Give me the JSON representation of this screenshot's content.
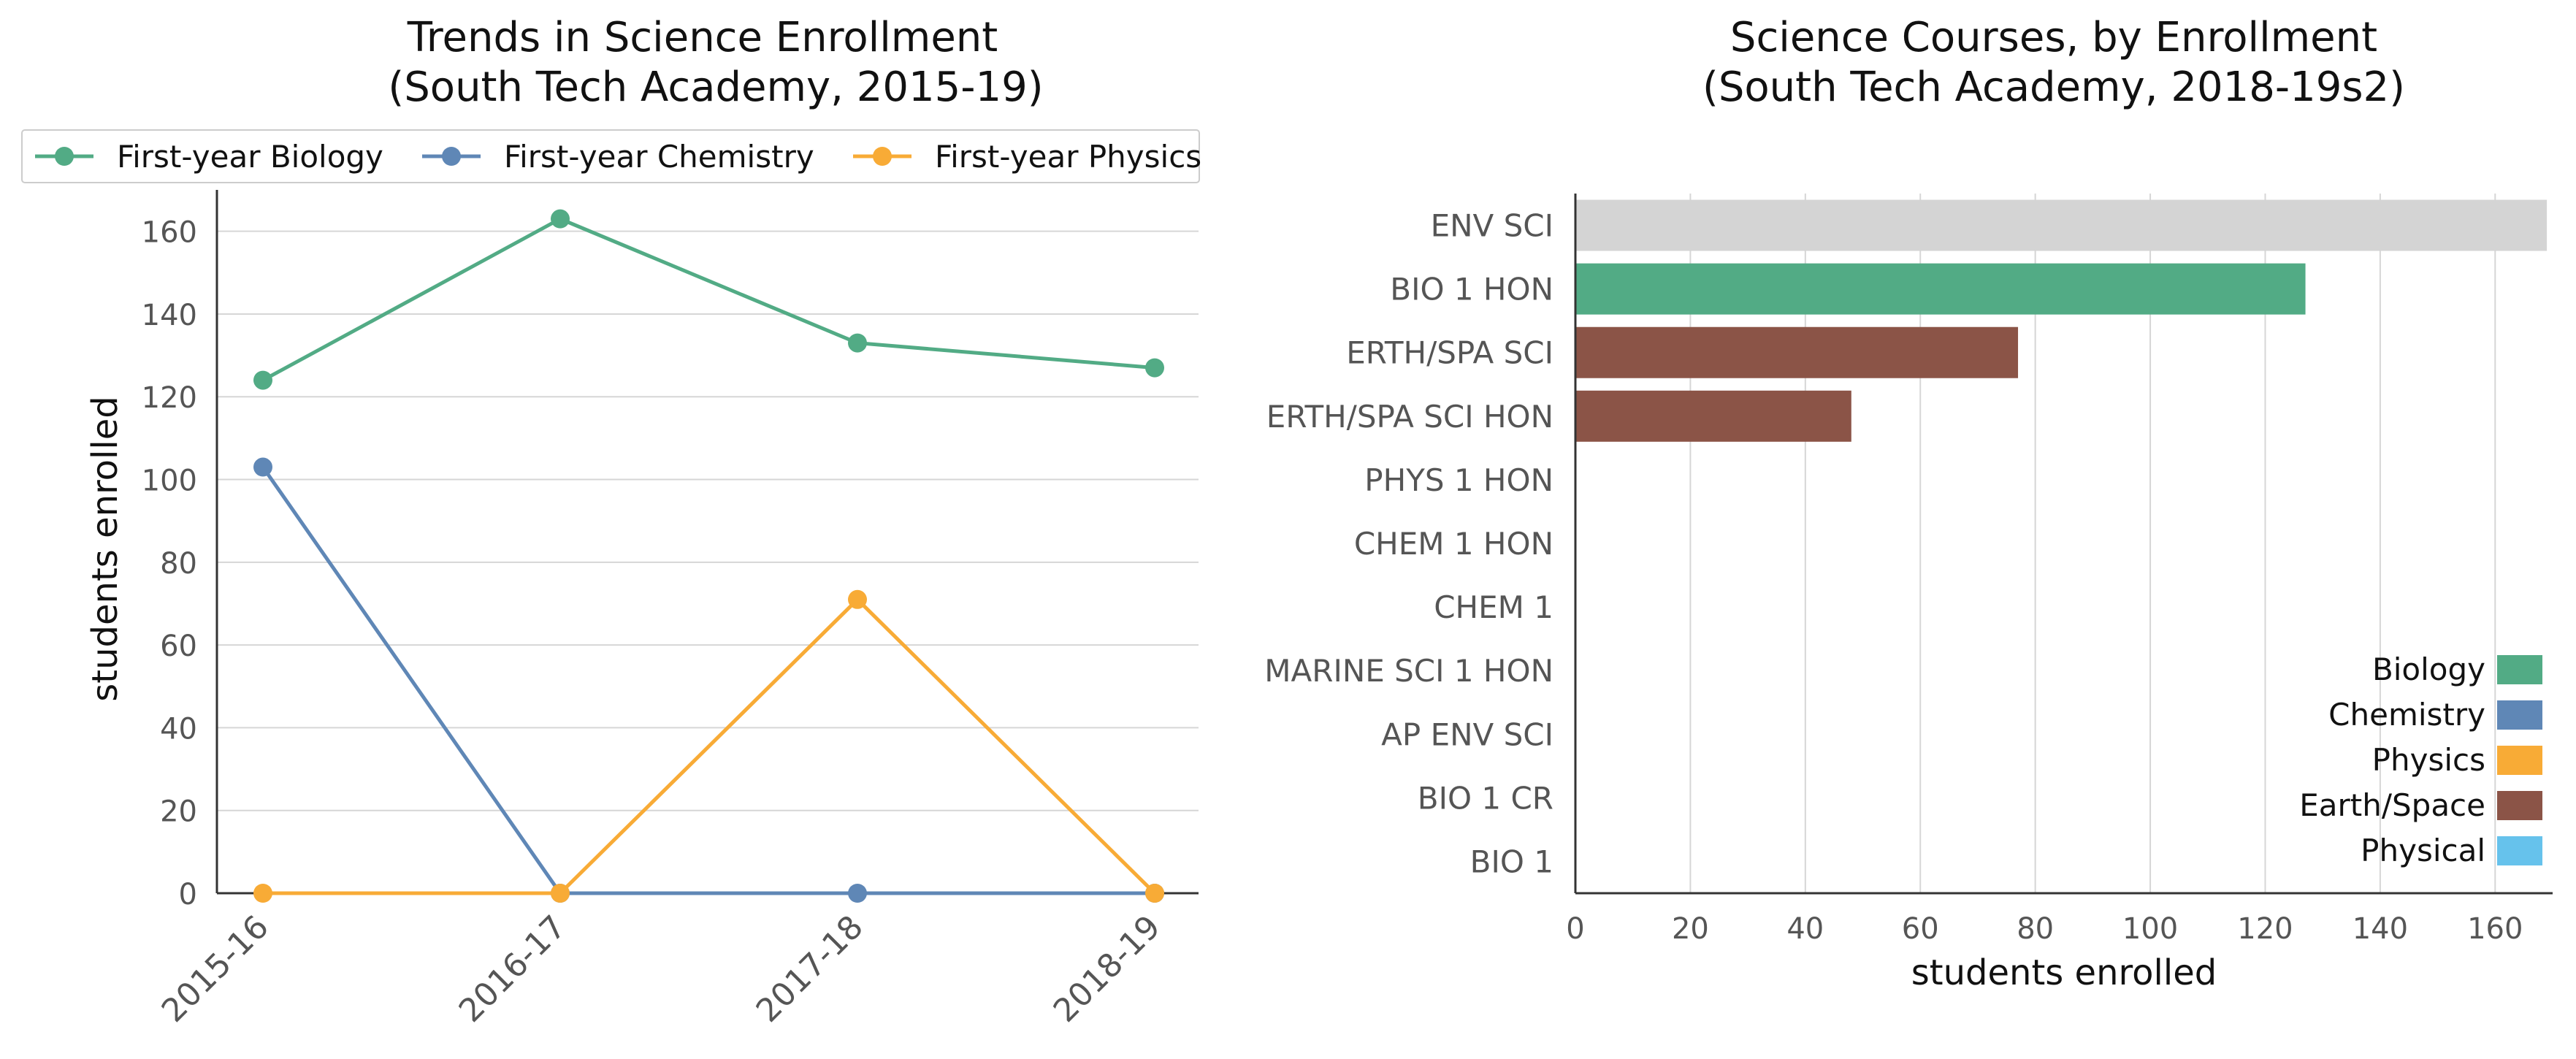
{
  "chart_data": [
    {
      "type": "line",
      "title": "Trends in Science Enrollment\n(South Tech Academy, 2015-19)",
      "xlabel": "",
      "ylabel": "students enrolled",
      "categories": [
        "2015-16",
        "2016-17",
        "2017-18",
        "2018-19"
      ],
      "ylim": [
        0,
        170
      ],
      "yticks": [
        0,
        20,
        40,
        60,
        80,
        100,
        120,
        140,
        160
      ],
      "grid": "horizontal",
      "legend": "top",
      "series": [
        {
          "name": "First-year Biology",
          "color": "#52ab85",
          "values": [
            124,
            163,
            133,
            127
          ]
        },
        {
          "name": "First-year Chemistry",
          "color": "#5f87b6",
          "values": [
            103,
            0,
            0,
            0
          ]
        },
        {
          "name": "First-year Physics",
          "color": "#f8ab36",
          "values": [
            0,
            0,
            71,
            0
          ]
        }
      ]
    },
    {
      "type": "bar",
      "orientation": "horizontal",
      "title": "Science Courses, by Enrollment\n(South Tech Academy, 2018-19s2)",
      "xlabel": "students enrolled",
      "ylabel": "",
      "xlim": [
        0,
        170
      ],
      "xticks": [
        0,
        20,
        40,
        60,
        80,
        100,
        120,
        140,
        160
      ],
      "grid": "vertical",
      "legend": "bottom-right",
      "categories": [
        "ENV SCI",
        "BIO 1 HON",
        "ERTH/SPA SCI",
        "ERTH/SPA SCI HON",
        "PHYS 1 HON",
        "CHEM 1 HON",
        "CHEM 1",
        "MARINE SCI 1 HON",
        "AP ENV SCI",
        "BIO 1 CR",
        "BIO 1"
      ],
      "values": [
        169,
        127,
        77,
        48,
        0,
        0,
        0,
        0,
        0,
        0,
        0
      ],
      "bar_colors": [
        "#d4d4d4",
        "#52ab85",
        "#8b5447",
        "#8b5447",
        "#f8ab36",
        "#5f87b6",
        "#5f87b6",
        "#52ab85",
        "#d4d4d4",
        "#52ab85",
        "#52ab85"
      ],
      "legend_entries": [
        {
          "name": "Biology",
          "color": "#52ab85"
        },
        {
          "name": "Chemistry",
          "color": "#5f87b6"
        },
        {
          "name": "Physics",
          "color": "#f8ab36"
        },
        {
          "name": "Earth/Space",
          "color": "#8b5447"
        },
        {
          "name": "Physical",
          "color": "#66c2ec"
        }
      ]
    }
  ]
}
